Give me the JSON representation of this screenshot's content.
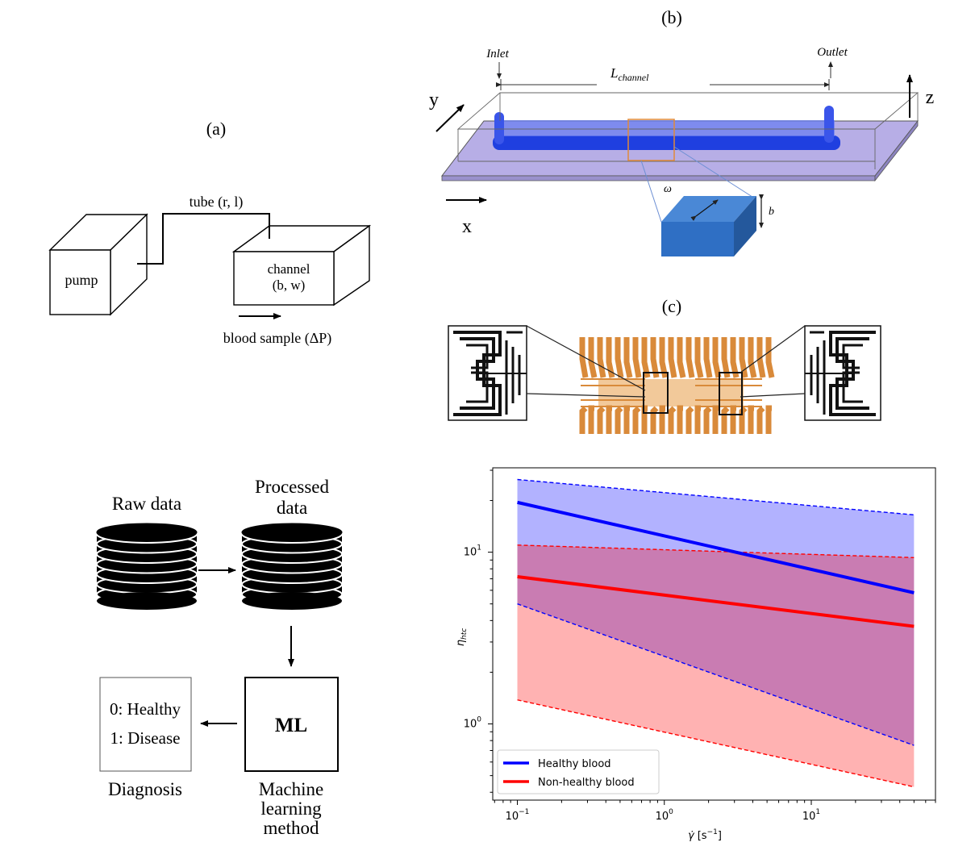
{
  "panel_a": {
    "label": "(a)",
    "tube": "tube (r, l)",
    "pump": "pump",
    "channel_line1": "channel",
    "channel_line2": "(b, w)",
    "blood_sample": "blood sample (ΔP)"
  },
  "panel_b": {
    "label": "(b)",
    "inlet": "Inlet",
    "outlet": "Outlet",
    "length_main": "L",
    "length_sub": "channel",
    "axis_x": "x",
    "axis_y": "y",
    "axis_z": "z",
    "omega": "ω",
    "b": "b",
    "colors": {
      "channel": "#1f3fe0",
      "plate": "#b7aee6",
      "block": "#2f6fc4"
    }
  },
  "panel_c": {
    "label": "(c)",
    "colors": {
      "electrode": "#d98a3a"
    }
  },
  "pipeline": {
    "raw_data": "Raw data",
    "processed_line1": "Processed",
    "processed_line2": "data",
    "ml": "ML",
    "method_line1": "Machine",
    "method_line2": "learning",
    "method_line3": "method",
    "healthy": "0: Healthy",
    "disease": "1: Disease",
    "diagnosis": "Diagnosis"
  },
  "chart_data": {
    "type": "line",
    "scale": "log-log",
    "xlabel_main": "γ̇",
    "xlabel_unit": "[s",
    "xlabel_exp": "−1",
    "xlabel_close": "]",
    "ylabel_main": "η",
    "ylabel_sub": "htc",
    "xlim": [
      0.068,
      70
    ],
    "ylim": [
      0.36,
      31
    ],
    "x_ticks": [
      {
        "value": 0.1,
        "base": "10",
        "exp": "−1"
      },
      {
        "value": 1,
        "base": "10",
        "exp": "0"
      },
      {
        "value": 10,
        "base": "10",
        "exp": "1"
      }
    ],
    "y_ticks": [
      {
        "value": 1,
        "base": "10",
        "exp": "0"
      },
      {
        "value": 10,
        "base": "10",
        "exp": "1"
      }
    ],
    "legend_position": "bottom-left",
    "series": [
      {
        "name": "Healthy blood",
        "color": "#0000ff",
        "fill": "rgba(0,0,255,0.30)",
        "x": [
          0.1,
          50
        ],
        "mean": [
          19.5,
          5.8
        ],
        "upper": [
          26.5,
          16.5
        ],
        "lower": [
          5.0,
          0.75
        ]
      },
      {
        "name": "Non-healthy blood",
        "color": "#ff0000",
        "fill": "rgba(255,0,0,0.30)",
        "x": [
          0.1,
          50
        ],
        "mean": [
          7.2,
          3.7
        ],
        "upper": [
          11.0,
          9.3
        ],
        "lower": [
          1.38,
          0.43
        ]
      }
    ]
  }
}
